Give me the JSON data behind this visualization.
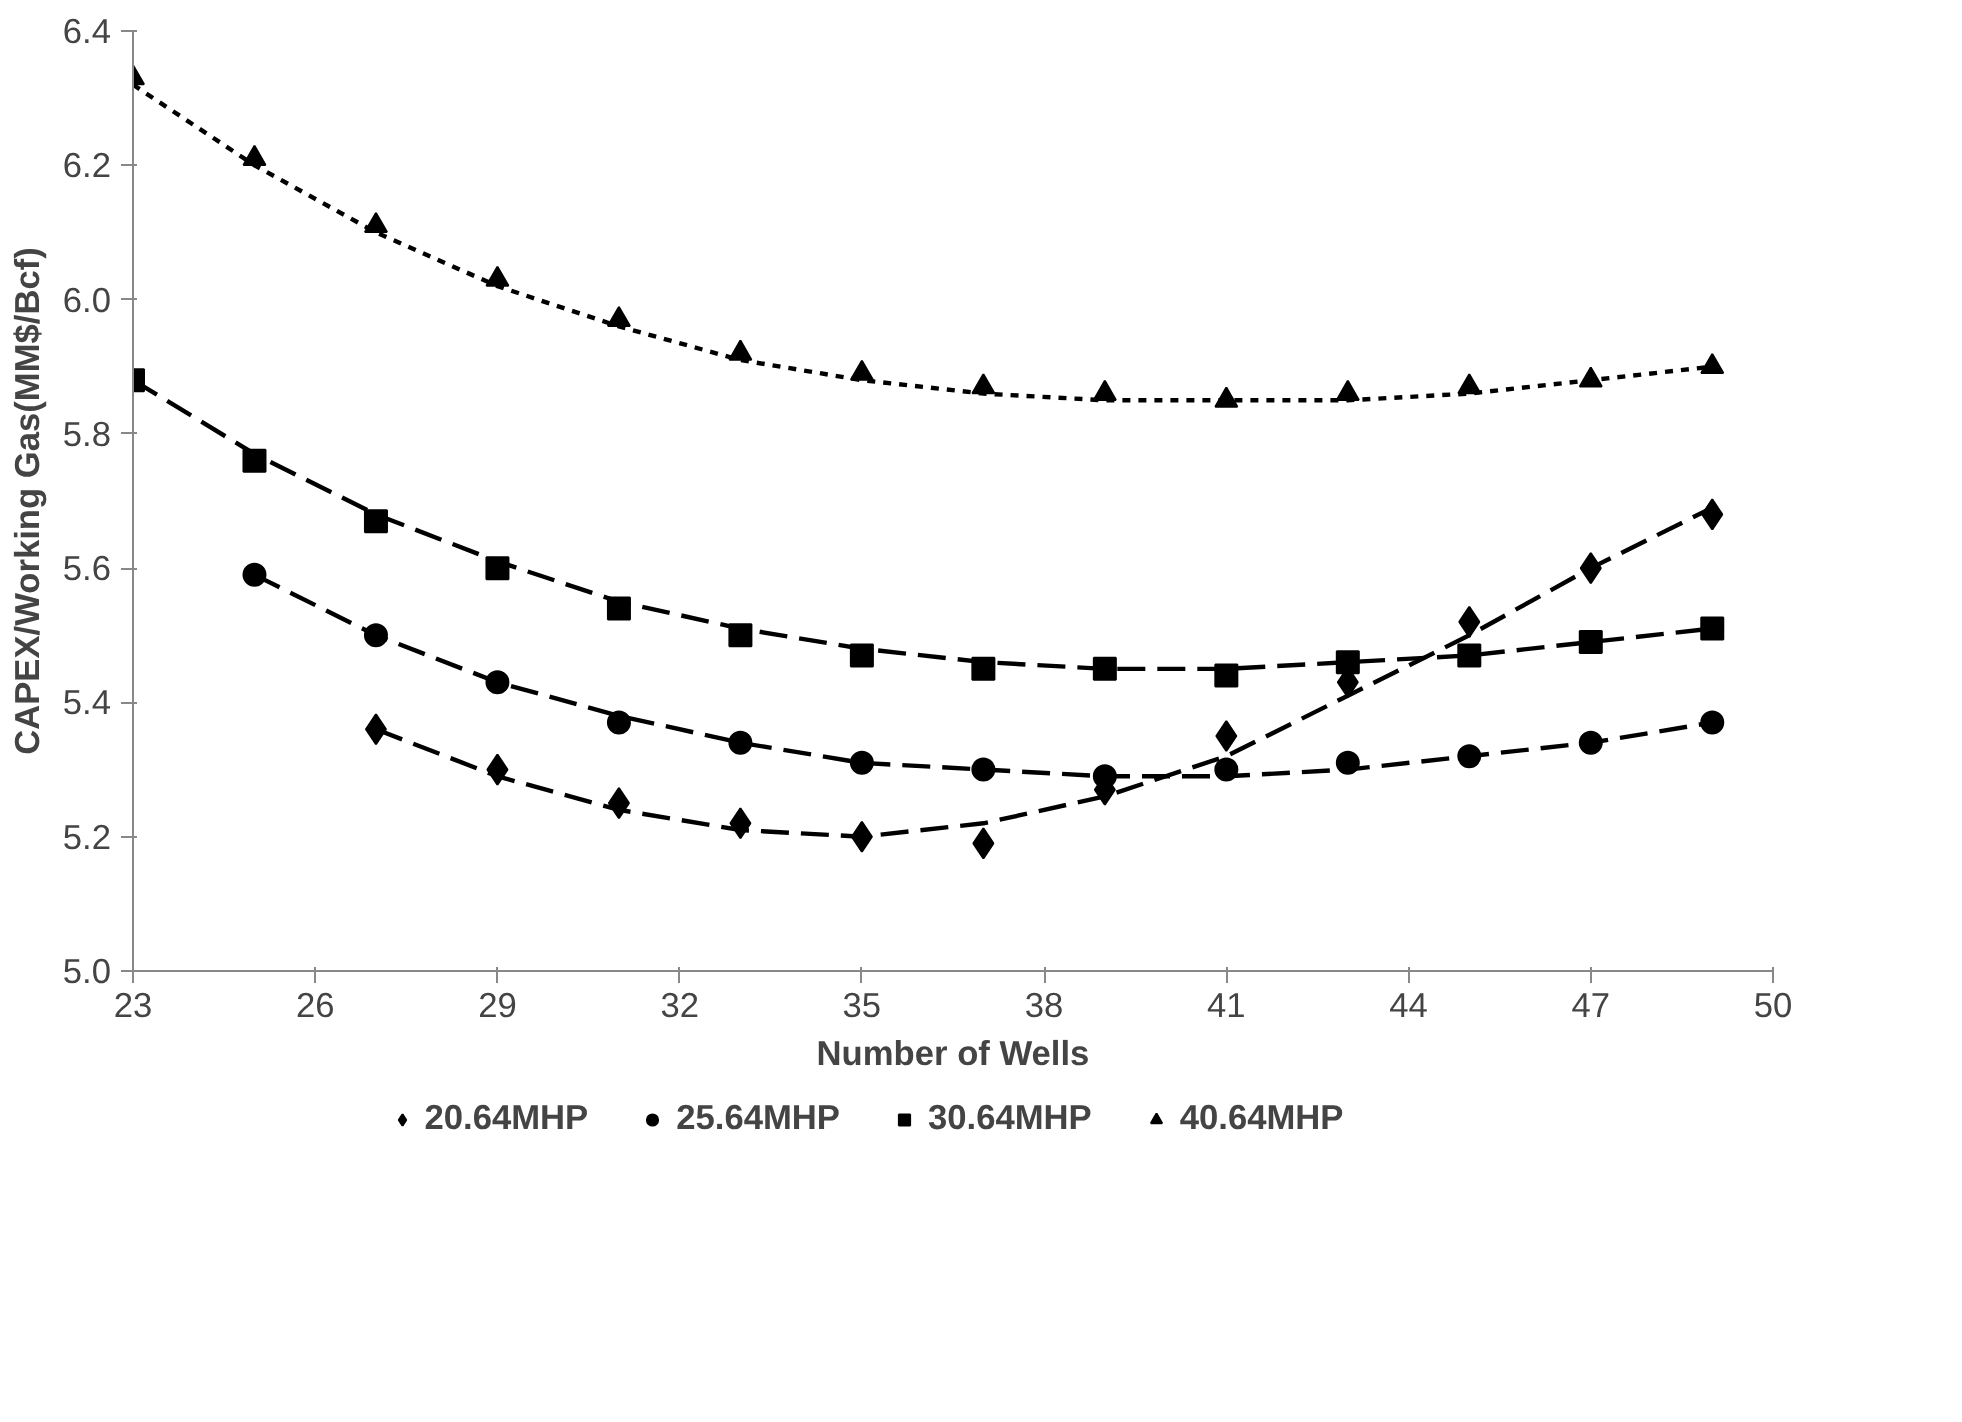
{
  "chart_data": {
    "type": "scatter",
    "xlabel": "Number of Wells",
    "ylabel": "CAPEX/Working Gas(MM$/Bcf)",
    "xlim": [
      23,
      50
    ],
    "xticks": [
      23,
      26,
      29,
      32,
      35,
      38,
      41,
      44,
      47,
      50
    ],
    "ylim": [
      5.0,
      6.4
    ],
    "yticks": [
      {
        "value": 5,
        "label": "5.0"
      },
      5.2,
      5.4,
      5.6,
      5.8,
      {
        "value": 6,
        "label": "6.0"
      },
      6.2,
      6.4
    ],
    "grid": false,
    "legend": "bottom",
    "series": [
      {
        "name": "20.64MHP",
        "color": "#000000",
        "marker": "diamond",
        "x": [
          27,
          29,
          31,
          33,
          35,
          37,
          39,
          41,
          43,
          45,
          47,
          49
        ],
        "values": [
          5.36,
          5.3,
          5.25,
          5.22,
          5.2,
          5.19,
          5.27,
          5.35,
          5.43,
          5.52,
          5.6,
          5.68
        ]
      },
      {
        "name": "25.64MHP",
        "color": "#000000",
        "marker": "circle",
        "x": [
          25,
          27,
          29,
          31,
          33,
          35,
          37,
          39,
          41,
          43,
          45,
          47,
          49
        ],
        "values": [
          5.59,
          5.5,
          5.43,
          5.37,
          5.34,
          5.31,
          5.3,
          5.29,
          5.3,
          5.31,
          5.32,
          5.34,
          5.37
        ]
      },
      {
        "name": "30.64MHP",
        "color": "#000000",
        "marker": "square",
        "x": [
          23,
          25,
          27,
          29,
          31,
          33,
          35,
          37,
          39,
          41,
          43,
          45,
          47,
          49
        ],
        "values": [
          5.88,
          5.76,
          5.67,
          5.6,
          5.54,
          5.5,
          5.47,
          5.45,
          5.45,
          5.44,
          5.46,
          5.47,
          5.49,
          5.51
        ]
      },
      {
        "name": "40.64MHP",
        "color": "#000000",
        "marker": "triangle",
        "x": [
          23,
          25,
          27,
          29,
          31,
          33,
          35,
          37,
          39,
          41,
          43,
          45,
          47,
          49
        ],
        "values": [
          6.33,
          6.21,
          6.11,
          6.03,
          5.97,
          5.92,
          5.89,
          5.87,
          5.86,
          5.85,
          5.86,
          5.87,
          5.88,
          5.9
        ]
      },
      {
        "type": "line",
        "color": "#000000",
        "line_style": "dashed",
        "x": [
          27,
          29,
          31,
          33,
          35,
          37,
          39,
          41,
          43,
          45,
          47,
          49
        ],
        "values": [
          5.36,
          5.29,
          5.24,
          5.21,
          5.2,
          5.22,
          5.26,
          5.32,
          5.41,
          5.5,
          5.6,
          5.69
        ]
      },
      {
        "type": "line",
        "color": "#000000",
        "line_style": "dashed",
        "x": [
          25,
          27,
          29,
          31,
          33,
          35,
          37,
          39,
          41,
          43,
          45,
          47,
          49
        ],
        "values": [
          5.59,
          5.5,
          5.43,
          5.38,
          5.34,
          5.31,
          5.3,
          5.29,
          5.29,
          5.3,
          5.32,
          5.34,
          5.37
        ]
      },
      {
        "type": "line",
        "color": "#000000",
        "line_style": "dashed",
        "x": [
          23,
          25,
          27,
          29,
          31,
          33,
          35,
          37,
          39,
          41,
          43,
          45,
          47,
          49
        ],
        "values": [
          5.88,
          5.77,
          5.68,
          5.61,
          5.55,
          5.51,
          5.48,
          5.46,
          5.45,
          5.45,
          5.46,
          5.47,
          5.49,
          5.51
        ]
      },
      {
        "type": "line",
        "color": "#000000",
        "line_style": "dotted",
        "x": [
          23,
          25,
          27,
          29,
          31,
          33,
          35,
          37,
          39,
          41,
          43,
          45,
          47,
          49
        ],
        "values": [
          6.32,
          6.2,
          6.1,
          6.02,
          5.96,
          5.91,
          5.88,
          5.86,
          5.85,
          5.85,
          5.85,
          5.86,
          5.88,
          5.9
        ]
      }
    ]
  }
}
